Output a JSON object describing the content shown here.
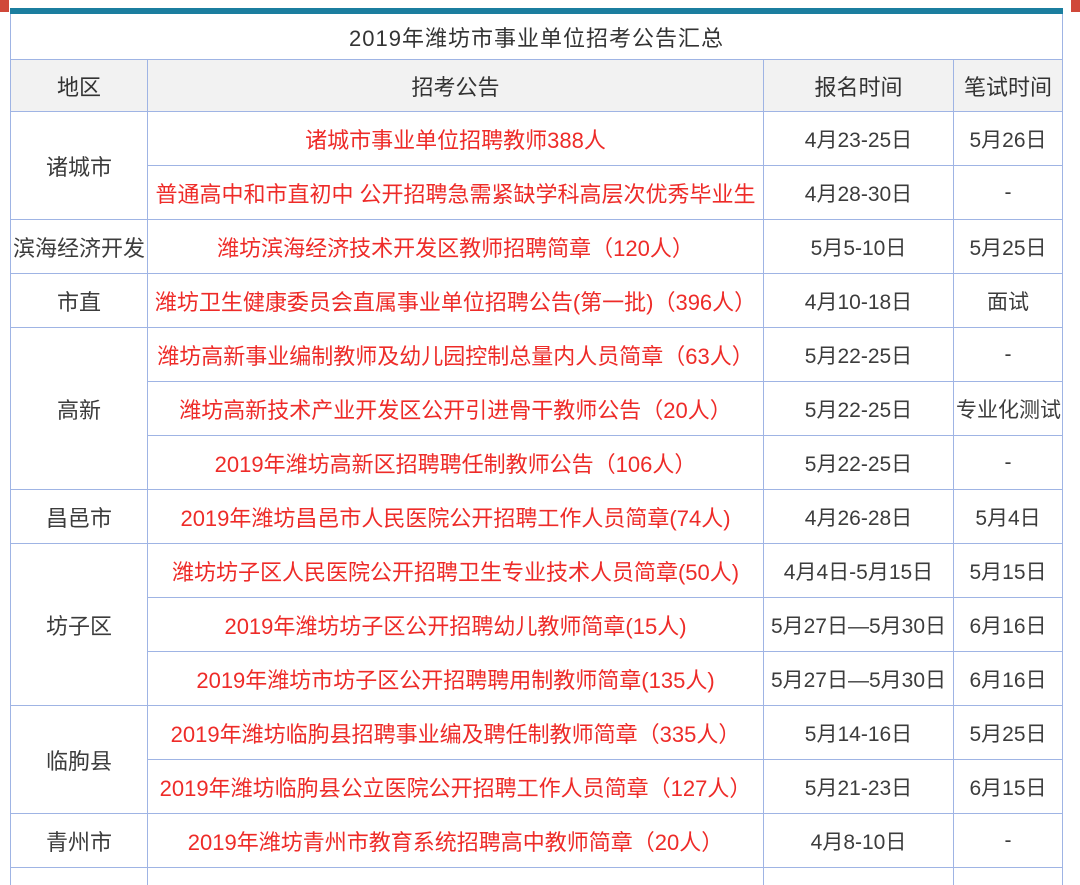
{
  "page": {
    "title": "2019年潍坊市事业单位招考公告汇总"
  },
  "table": {
    "headers": [
      {
        "label": "地区"
      },
      {
        "label": "招考公告"
      },
      {
        "label": "报名时间"
      },
      {
        "label": "笔试时间"
      }
    ],
    "groups": [
      {
        "region": "诸城市",
        "rows": [
          {
            "announcement": "诸城市事业单位招聘教师388人",
            "registration": "4月23-25日",
            "written_exam": "5月26日"
          },
          {
            "announcement": "普通高中和市直初中 公开招聘急需紧缺学科高层次优秀毕业生",
            "registration": "4月28-30日",
            "written_exam": "-"
          }
        ]
      },
      {
        "region": "滨海经济开发",
        "rows": [
          {
            "announcement": "潍坊滨海经济技术开发区教师招聘简章（120人）",
            "registration": "5月5-10日",
            "written_exam": "5月25日"
          }
        ]
      },
      {
        "region": "市直",
        "rows": [
          {
            "announcement": "潍坊卫生健康委员会直属事业单位招聘公告(第一批)（396人）",
            "registration": "4月10-18日",
            "written_exam": "面试"
          }
        ]
      },
      {
        "region": "高新",
        "rows": [
          {
            "announcement": "潍坊高新事业编制教师及幼儿园控制总量内人员简章（63人）",
            "registration": "5月22-25日",
            "written_exam": "-"
          },
          {
            "announcement": "潍坊高新技术产业开发区公开引进骨干教师公告（20人）",
            "registration": "5月22-25日",
            "written_exam": "专业化测试"
          },
          {
            "announcement": "2019年潍坊高新区招聘聘任制教师公告（106人）",
            "registration": "5月22-25日",
            "written_exam": "-"
          }
        ]
      },
      {
        "region": "昌邑市",
        "rows": [
          {
            "announcement": "2019年潍坊昌邑市人民医院公开招聘工作人员简章(74人)",
            "registration": "4月26-28日",
            "written_exam": "5月4日"
          }
        ]
      },
      {
        "region": "坊子区",
        "rows": [
          {
            "announcement": "潍坊坊子区人民医院公开招聘卫生专业技术人员简章(50人)",
            "registration": "4月4日-5月15日",
            "written_exam": "5月15日"
          },
          {
            "announcement": "2019年潍坊坊子区公开招聘幼儿教师简章(15人)",
            "registration": "5月27日—5月30日",
            "written_exam": "6月16日"
          },
          {
            "announcement": "2019年潍坊市坊子区公开招聘聘用制教师简章(135人)",
            "registration": "5月27日—5月30日",
            "written_exam": "6月16日"
          }
        ]
      },
      {
        "region": "临朐县",
        "rows": [
          {
            "announcement": "2019年潍坊临朐县招聘事业编及聘任制教师简章（335人）",
            "registration": "5月14-16日",
            "written_exam": "5月25日"
          },
          {
            "announcement": "2019年潍坊临朐县公立医院公开招聘工作人员简章（127人）",
            "registration": "5月21-23日",
            "written_exam": "6月15日"
          }
        ]
      },
      {
        "region": "青州市",
        "rows": [
          {
            "announcement": "2019年潍坊青州市教育系统招聘高中教师简章（20人）",
            "registration": "4月8-10日",
            "written_exam": "-"
          }
        ]
      }
    ]
  },
  "colors": {
    "top_band": "#1b7e9f",
    "cell_border": "#9fb4e4",
    "header_bg": "#f2f2f2",
    "announcement_red": "#ee2b28",
    "text_dark": "#3c3c3c",
    "corner_red": "#d0483a"
  }
}
